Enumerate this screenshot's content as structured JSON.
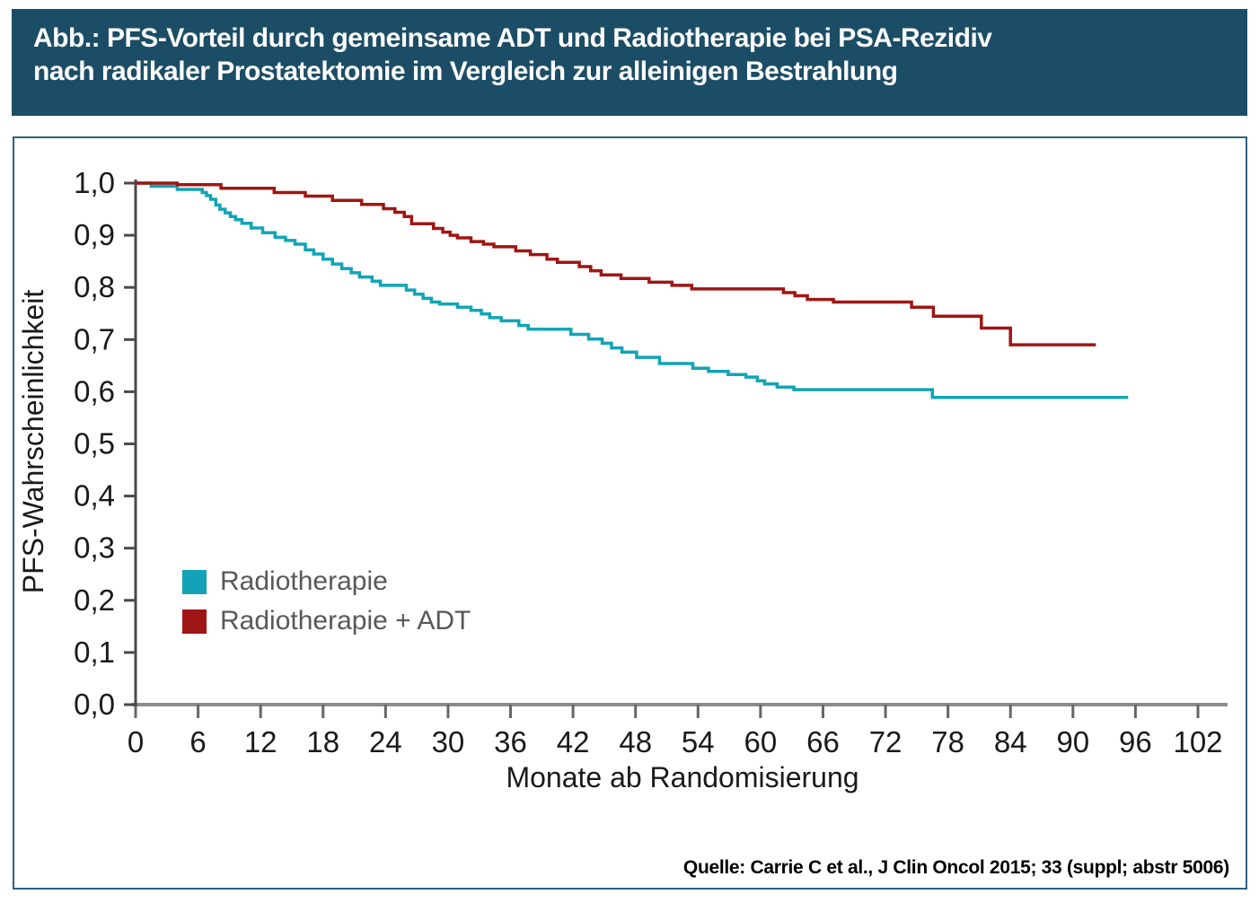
{
  "banner": {
    "title": "Abb.: PFS-Vorteil durch gemeinsame ADT und Radiotherapie bei PSA-Rezidiv\nnach radikaler Prostatektomie im Vergleich zur alleinigen Bestrahlung",
    "bg_color": "#1c4d66",
    "text_color": "#ffffff"
  },
  "panel": {
    "border_color": "#2e6181"
  },
  "source_line": "Quelle: Carrie C et al., J Clin Oncol 2015; 33 (suppl; abstr 5006)",
  "chart_data": {
    "type": "line",
    "subtype": "kaplan-meier-step",
    "title": "",
    "xlabel": "Monate ab Randomisierung",
    "ylabel": "PFS-Wahrscheinlichkeit",
    "xlim": [
      0,
      105
    ],
    "ylim": [
      0.0,
      1.0
    ],
    "grid": false,
    "legend_position": "inside-left-middle",
    "x_ticks": [
      0,
      6,
      12,
      18,
      24,
      30,
      36,
      42,
      48,
      54,
      60,
      66,
      72,
      78,
      84,
      90,
      96,
      102
    ],
    "y_ticks": [
      {
        "value": 0.0,
        "label": "0,0"
      },
      {
        "value": 0.1,
        "label": "0,1"
      },
      {
        "value": 0.2,
        "label": "0,2"
      },
      {
        "value": 0.3,
        "label": "0,3"
      },
      {
        "value": 0.4,
        "label": "0,4"
      },
      {
        "value": 0.5,
        "label": "0,5"
      },
      {
        "value": 0.6,
        "label": "0,6"
      },
      {
        "value": 0.7,
        "label": "0,7"
      },
      {
        "value": 0.8,
        "label": "0,8"
      },
      {
        "value": 0.9,
        "label": "0,9"
      },
      {
        "value": 1.0,
        "label": "1,0"
      }
    ],
    "axis": {
      "x_line_color": "#8c8c8c",
      "y_line_color": "#4a4a4a",
      "tick_color": "#666666",
      "label_color": "#1a1a1a"
    },
    "series": [
      {
        "name": "Radiotherapie",
        "color": "#12a4b6",
        "end_month": 95.3,
        "points": [
          [
            0,
            1.0
          ],
          [
            1.5,
            0.994
          ],
          [
            4.0,
            0.988
          ],
          [
            6.4,
            0.982
          ],
          [
            6.8,
            0.976
          ],
          [
            7.2,
            0.969
          ],
          [
            7.7,
            0.958
          ],
          [
            8.1,
            0.95
          ],
          [
            8.6,
            0.943
          ],
          [
            9.1,
            0.936
          ],
          [
            9.6,
            0.93
          ],
          [
            10.2,
            0.923
          ],
          [
            11.1,
            0.914
          ],
          [
            12.2,
            0.905
          ],
          [
            13.4,
            0.896
          ],
          [
            14.4,
            0.89
          ],
          [
            15.3,
            0.883
          ],
          [
            16.3,
            0.872
          ],
          [
            17.1,
            0.864
          ],
          [
            18.0,
            0.854
          ],
          [
            18.9,
            0.845
          ],
          [
            19.8,
            0.836
          ],
          [
            20.7,
            0.828
          ],
          [
            21.5,
            0.82
          ],
          [
            22.7,
            0.812
          ],
          [
            23.5,
            0.804
          ],
          [
            26.0,
            0.795
          ],
          [
            26.8,
            0.787
          ],
          [
            27.6,
            0.779
          ],
          [
            28.4,
            0.772
          ],
          [
            29.2,
            0.768
          ],
          [
            30.9,
            0.762
          ],
          [
            32.2,
            0.756
          ],
          [
            33.2,
            0.749
          ],
          [
            34.0,
            0.742
          ],
          [
            35.1,
            0.736
          ],
          [
            36.8,
            0.727
          ],
          [
            37.7,
            0.72
          ],
          [
            41.8,
            0.71
          ],
          [
            43.5,
            0.701
          ],
          [
            44.8,
            0.693
          ],
          [
            45.7,
            0.684
          ],
          [
            46.7,
            0.676
          ],
          [
            48.1,
            0.666
          ],
          [
            50.3,
            0.654
          ],
          [
            53.5,
            0.645
          ],
          [
            55.0,
            0.639
          ],
          [
            56.9,
            0.633
          ],
          [
            58.6,
            0.628
          ],
          [
            59.7,
            0.621
          ],
          [
            60.4,
            0.615
          ],
          [
            61.6,
            0.609
          ],
          [
            63.2,
            0.604
          ],
          [
            76.5,
            0.589
          ]
        ]
      },
      {
        "name": "Radiotherapie + ADT",
        "color": "#9f1614",
        "end_month": 92.2,
        "points": [
          [
            0,
            1.0
          ],
          [
            4.0,
            0.997
          ],
          [
            8.2,
            0.99
          ],
          [
            13.3,
            0.982
          ],
          [
            16.3,
            0.975
          ],
          [
            18.9,
            0.967
          ],
          [
            21.7,
            0.959
          ],
          [
            23.8,
            0.951
          ],
          [
            24.9,
            0.944
          ],
          [
            25.8,
            0.936
          ],
          [
            26.5,
            0.922
          ],
          [
            28.6,
            0.913
          ],
          [
            29.5,
            0.906
          ],
          [
            30.2,
            0.9
          ],
          [
            30.9,
            0.895
          ],
          [
            32.2,
            0.888
          ],
          [
            33.4,
            0.883
          ],
          [
            34.4,
            0.878
          ],
          [
            36.5,
            0.87
          ],
          [
            37.9,
            0.863
          ],
          [
            39.5,
            0.854
          ],
          [
            40.5,
            0.848
          ],
          [
            42.6,
            0.84
          ],
          [
            43.7,
            0.832
          ],
          [
            44.7,
            0.824
          ],
          [
            46.6,
            0.817
          ],
          [
            49.3,
            0.81
          ],
          [
            51.5,
            0.804
          ],
          [
            53.4,
            0.797
          ],
          [
            62.2,
            0.79
          ],
          [
            63.3,
            0.784
          ],
          [
            64.5,
            0.777
          ],
          [
            67.0,
            0.772
          ],
          [
            74.5,
            0.762
          ],
          [
            76.6,
            0.745
          ],
          [
            81.2,
            0.722
          ],
          [
            84.0,
            0.69
          ]
        ]
      }
    ]
  }
}
